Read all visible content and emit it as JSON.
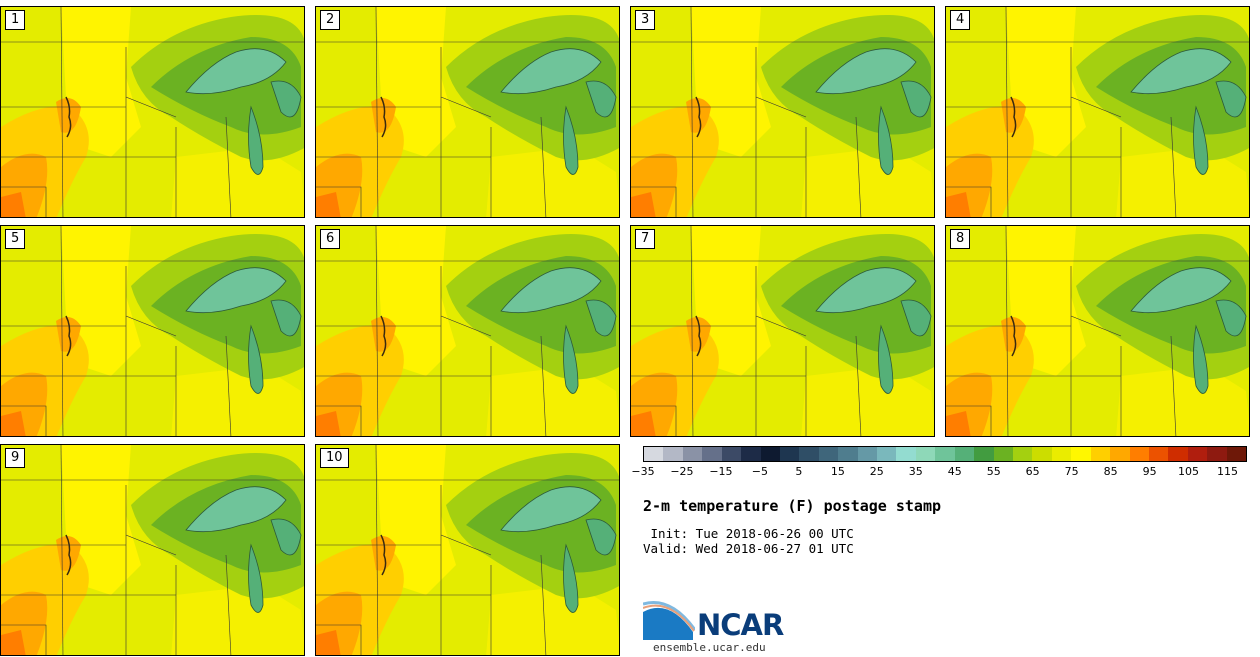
{
  "stamps": [
    "1",
    "2",
    "3",
    "4",
    "5",
    "6",
    "7",
    "8",
    "9",
    "10"
  ],
  "colorbar": {
    "ticks": [
      "−35",
      "−25",
      "−15",
      "−5",
      "5",
      "15",
      "25",
      "35",
      "45",
      "55",
      "65",
      "75",
      "85",
      "95",
      "105",
      "115"
    ],
    "colors": [
      "#d6d9e0",
      "#b3b8c6",
      "#8a92a6",
      "#65708a",
      "#3c4a66",
      "#1d2b47",
      "#0e1a30",
      "#1e3650",
      "#2f4e66",
      "#3f667b",
      "#4f7d8e",
      "#6599a6",
      "#7ab8bc",
      "#93dcd0",
      "#8ed8b8",
      "#6fc49a",
      "#55b078",
      "#429c40",
      "#6bb222",
      "#a4d010",
      "#ccdd00",
      "#eaec00",
      "#fff700",
      "#ffcf00",
      "#ffa800",
      "#ff7e00",
      "#ec5200",
      "#cf2d00",
      "#b01e0e",
      "#8e1a10",
      "#6e1808"
    ],
    "min": -35,
    "max": 120
  },
  "title": "2-m temperature (F) postage stamp",
  "init": " Init: Tue 2018-06-26 00 UTC",
  "valid": "Valid: Wed 2018-06-27 01 UTC",
  "logo": {
    "text": "NCAR",
    "site": "ensemble.ucar.edu",
    "icon": "ncar-logo-icon"
  }
}
